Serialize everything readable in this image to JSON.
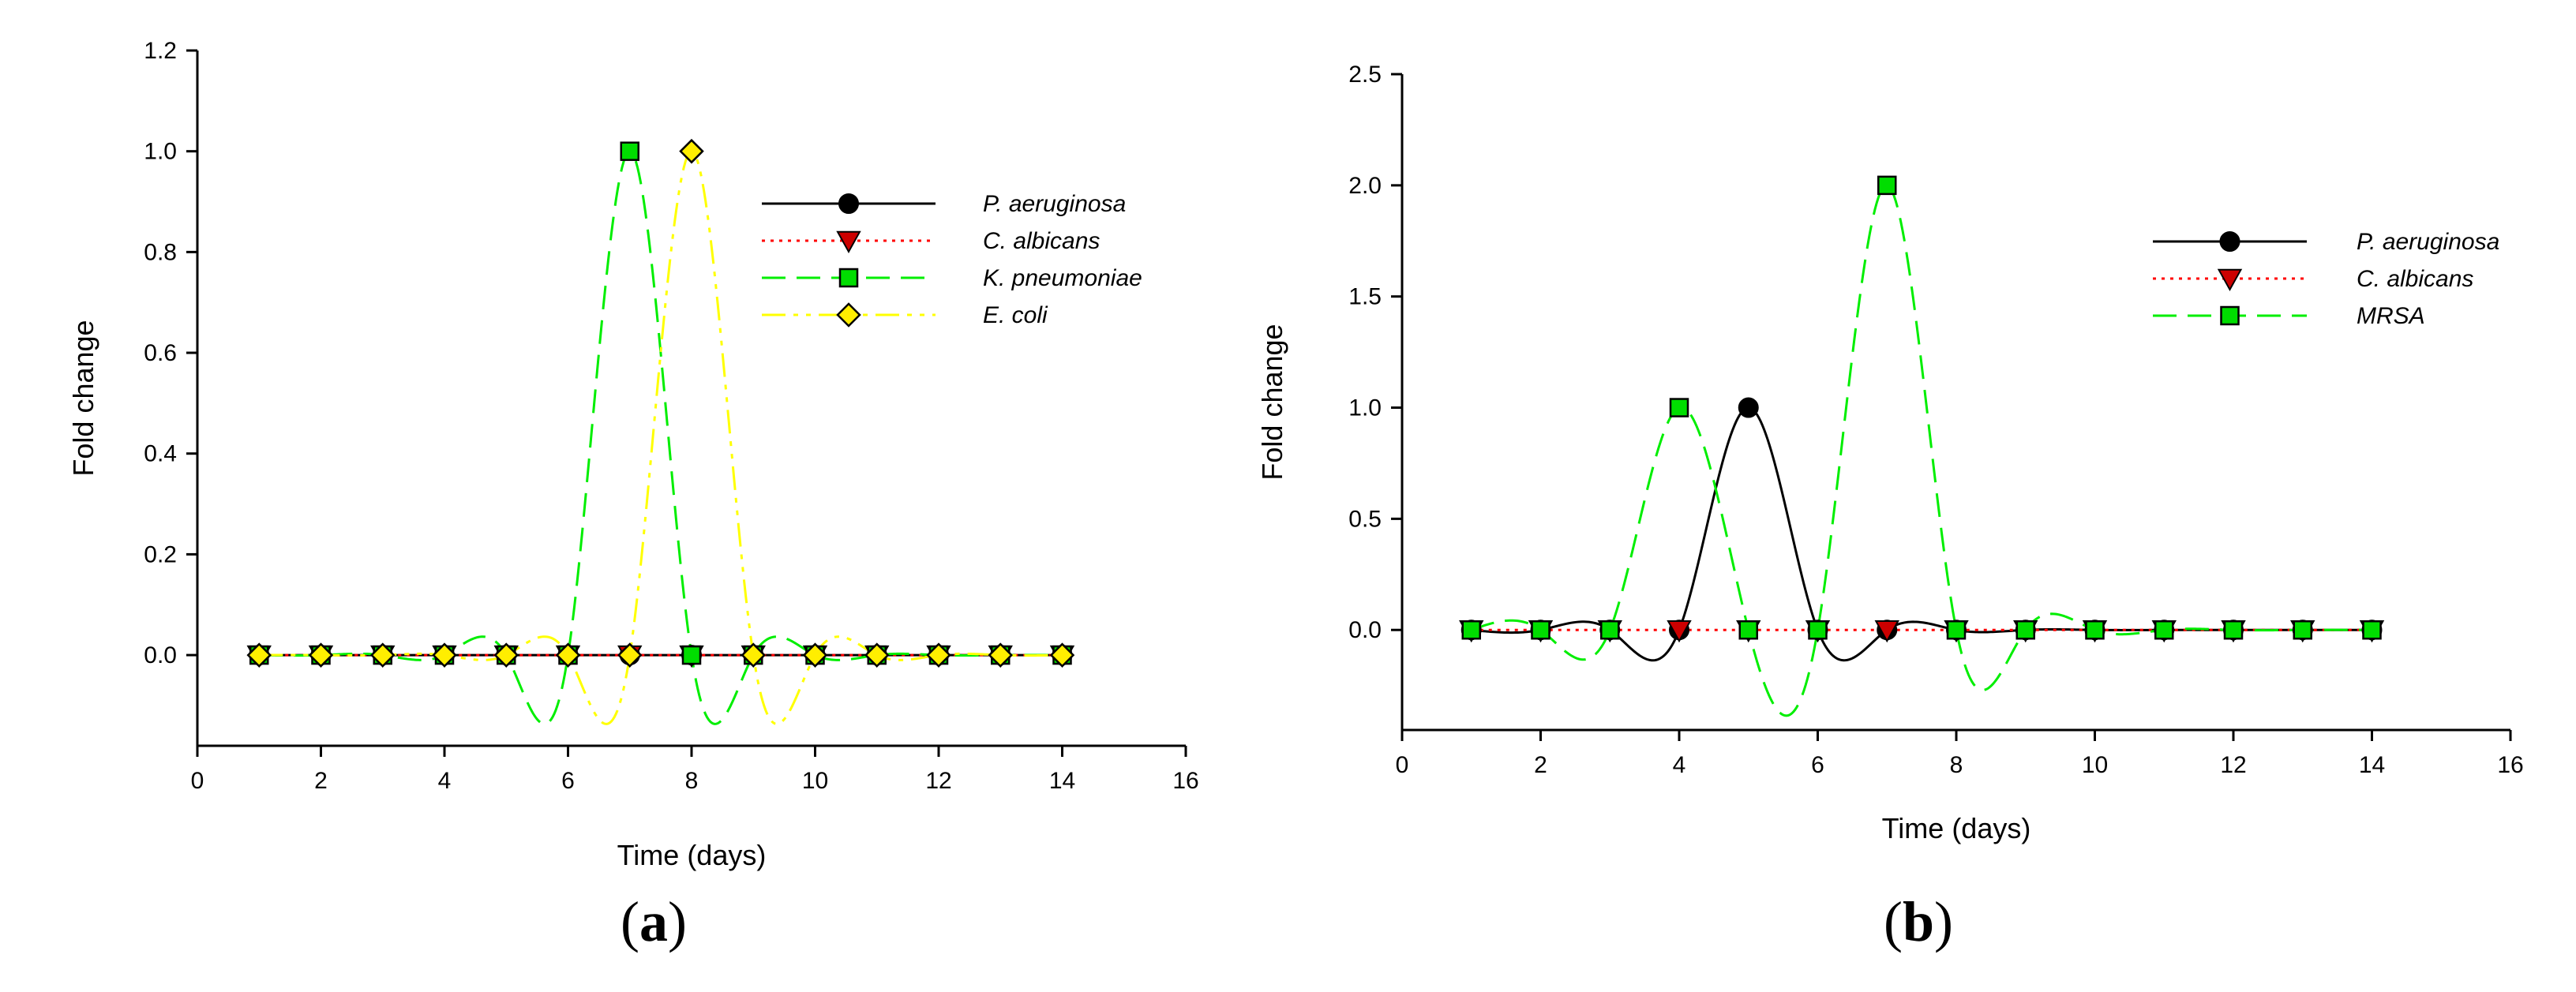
{
  "chart_data": [
    {
      "panel_label": "(a)",
      "panel_letter": "a",
      "type": "line",
      "xlabel": "Time (days)",
      "ylabel": "Fold change",
      "xlim": [
        0,
        16
      ],
      "ylim": [
        -0.18,
        1.2
      ],
      "xticks": [
        0,
        2,
        4,
        6,
        8,
        10,
        12,
        14,
        16
      ],
      "yticks": [
        0.0,
        0.2,
        0.4,
        0.6,
        0.8,
        1.0,
        1.2
      ],
      "ytick_labels": [
        "0.0",
        "0.2",
        "0.4",
        "0.6",
        "0.8",
        "1.0",
        "1.2"
      ],
      "grid": false,
      "legend_position": "top-right",
      "x": [
        1,
        2,
        3,
        4,
        5,
        6,
        7,
        8,
        9,
        10,
        11,
        12,
        13,
        14
      ],
      "series": [
        {
          "name": "P. aeruginosa",
          "marker": "circle",
          "line_style": "solid",
          "color": "#000000",
          "marker_fill": "#000000",
          "values": [
            0,
            0,
            0,
            0,
            0,
            0,
            0,
            0,
            0,
            0,
            0,
            0,
            0,
            0
          ]
        },
        {
          "name": "C. albicans",
          "marker": "triangle-down",
          "line_style": "dotted",
          "color": "#ff0000",
          "marker_fill": "#cc0000",
          "values": [
            0,
            0,
            0,
            0,
            0,
            0,
            0,
            0,
            0,
            0,
            0,
            0,
            0,
            0
          ]
        },
        {
          "name": "K. pneumoniae",
          "marker": "square",
          "line_style": "dashed",
          "color": "#00ee00",
          "marker_fill": "#00dd00",
          "values": [
            0,
            0,
            0,
            0,
            0,
            0,
            1,
            0,
            0,
            0,
            0,
            0,
            0,
            0
          ]
        },
        {
          "name": "E. coli",
          "marker": "diamond",
          "line_style": "dash-dot-dot",
          "color": "#ffff00",
          "marker_fill": "#ffee00",
          "values": [
            0,
            0,
            0,
            0,
            0,
            0,
            0,
            1,
            0,
            0,
            0,
            0,
            0,
            0
          ]
        }
      ]
    },
    {
      "panel_label": "(b)",
      "panel_letter": "b",
      "type": "line",
      "xlabel": "Time (days)",
      "ylabel": "Fold change",
      "xlim": [
        0,
        16
      ],
      "ylim": [
        -0.45,
        2.5
      ],
      "xticks": [
        0,
        2,
        4,
        6,
        8,
        10,
        12,
        14,
        16
      ],
      "yticks": [
        0.0,
        0.5,
        1.0,
        1.5,
        2.0,
        2.5
      ],
      "ytick_labels": [
        "0.0",
        "0.5",
        "1.0",
        "1.5",
        "2.0",
        "2.5"
      ],
      "grid": false,
      "legend_position": "top-right",
      "x": [
        1,
        2,
        3,
        4,
        5,
        6,
        7,
        8,
        9,
        10,
        11,
        12,
        13,
        14
      ],
      "series": [
        {
          "name": "P. aeruginosa",
          "marker": "circle",
          "line_style": "solid",
          "color": "#000000",
          "marker_fill": "#000000",
          "values": [
            0,
            0,
            0,
            0,
            1,
            0,
            0,
            0,
            0,
            0,
            0,
            0,
            0,
            0
          ]
        },
        {
          "name": "C. albicans",
          "marker": "triangle-down",
          "line_style": "dotted",
          "color": "#ff0000",
          "marker_fill": "#cc0000",
          "values": [
            0,
            0,
            0,
            0,
            0,
            0,
            0,
            0,
            0,
            0,
            0,
            0,
            0,
            0
          ]
        },
        {
          "name": "MRSA",
          "marker": "square",
          "line_style": "dashed",
          "color": "#00ee00",
          "marker_fill": "#00dd00",
          "values": [
            0,
            0,
            0,
            1,
            0,
            0,
            2,
            0,
            0,
            0,
            0,
            0,
            0,
            0
          ]
        }
      ]
    }
  ]
}
